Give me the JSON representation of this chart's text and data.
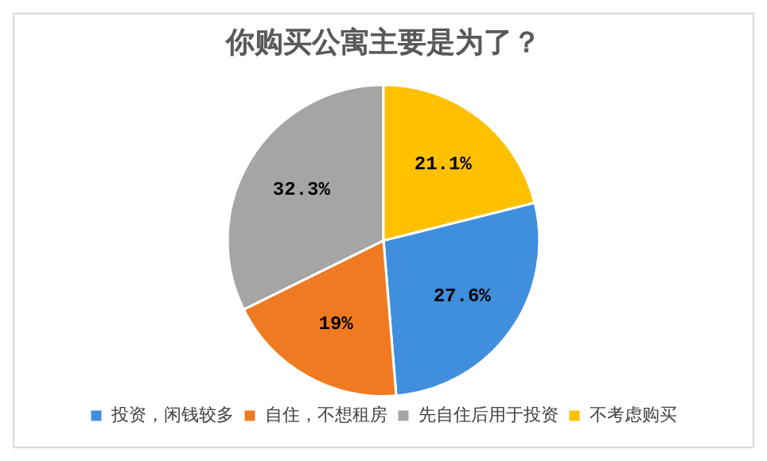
{
  "chart_data": {
    "type": "pie",
    "title": "你购买公寓主要是为了？",
    "categories": [
      "投资，闲钱较多",
      "自住，不想租房",
      "先自住后用于投资",
      "不考虑购买"
    ],
    "values": [
      27.6,
      19,
      32.3,
      21.1
    ],
    "colors": [
      "#3f8fdc",
      "#f07a22",
      "#a5a5a5",
      "#ffc000"
    ],
    "value_labels": [
      "27.6%",
      "19%",
      "32.3%",
      "21.1%"
    ],
    "legend": "bottom"
  }
}
